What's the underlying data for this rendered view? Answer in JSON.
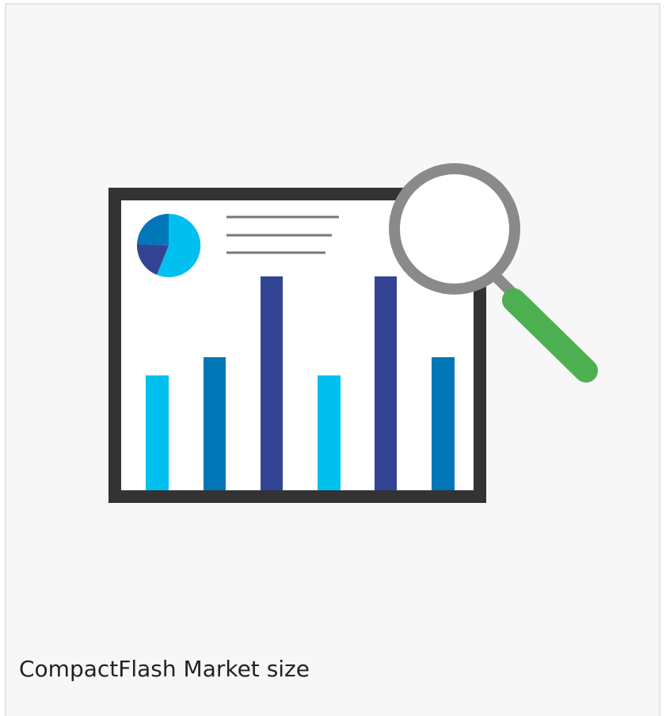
{
  "card": {
    "caption": "CompactFlash Market size"
  }
}
